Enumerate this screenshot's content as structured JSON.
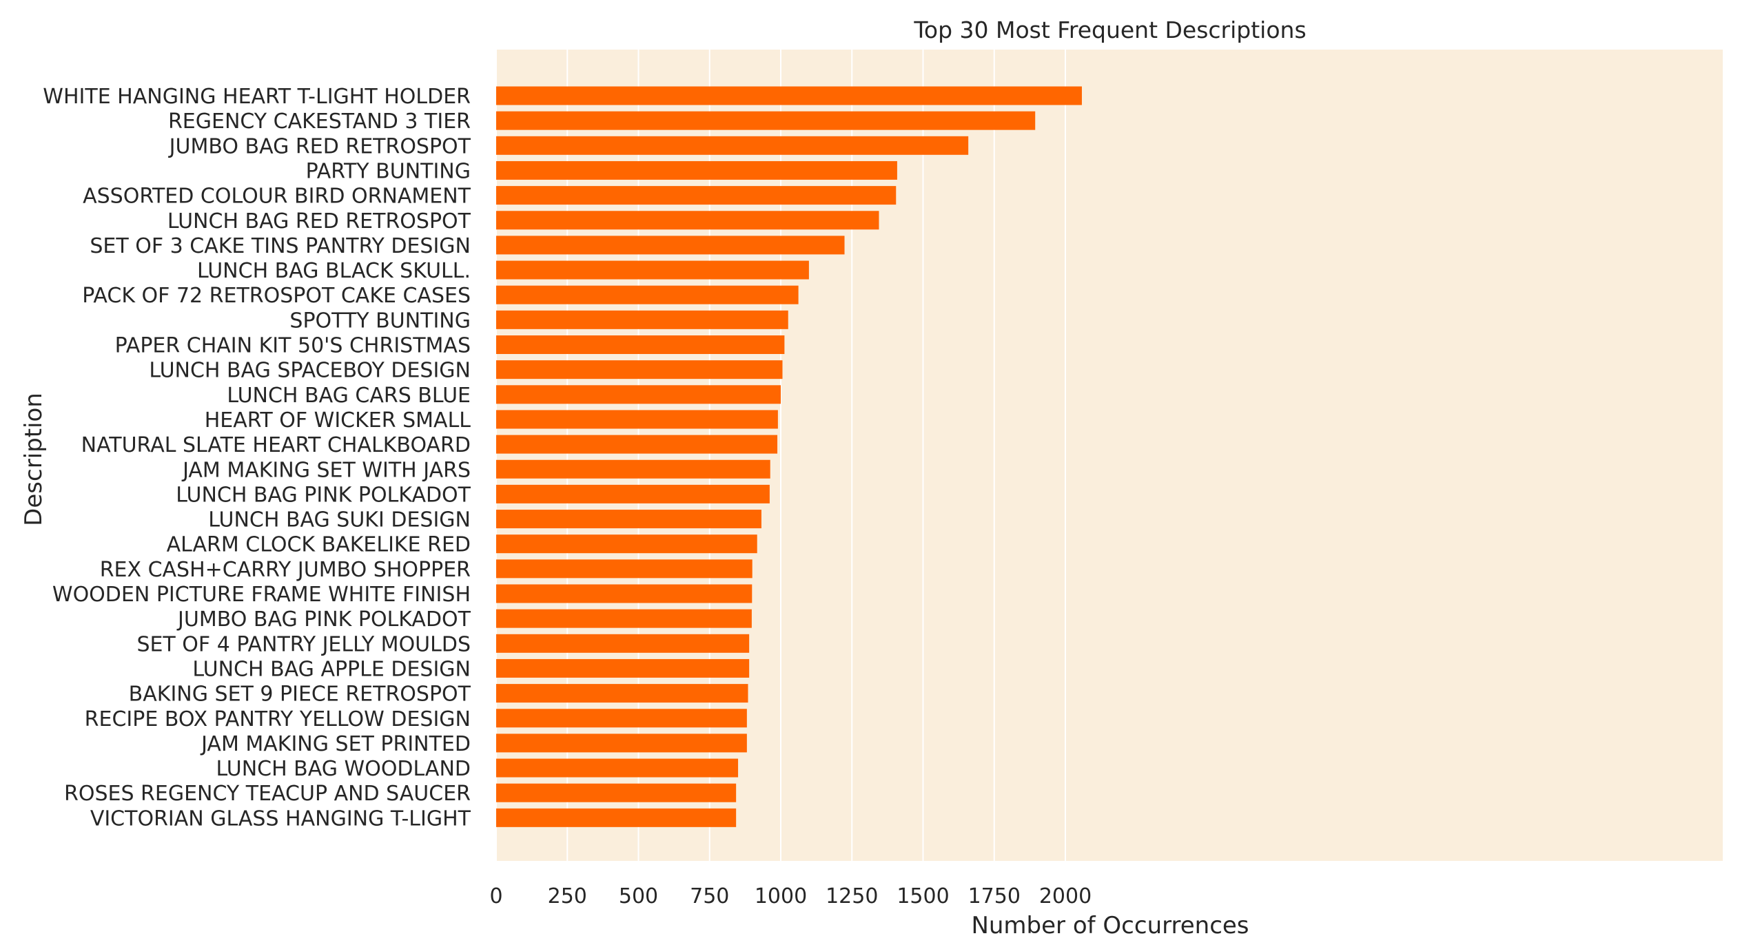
{
  "colors": {
    "bar": "#FF6600",
    "plot_background": "#FAEEDC",
    "grid": "#FFFFFF",
    "text": "#262626"
  },
  "chart_data": {
    "type": "bar",
    "orientation": "horizontal",
    "title": "Top 30 Most Frequent Descriptions",
    "xlabel": "Number of Occurrences",
    "ylabel": "Description",
    "xlim": [
      0,
      2160
    ],
    "xticks": [
      0,
      250,
      500,
      750,
      1000,
      1250,
      1500,
      1750,
      2000
    ],
    "xtick_labels": [
      "0",
      "250",
      "500",
      "750",
      "1000",
      "1250",
      "1500",
      "1750",
      "2000"
    ],
    "grid": true,
    "categories": [
      "WHITE HANGING HEART T-LIGHT HOLDER",
      "REGENCY CAKESTAND 3 TIER",
      "JUMBO BAG RED RETROSPOT",
      "PARTY BUNTING",
      "ASSORTED COLOUR BIRD ORNAMENT",
      "LUNCH BAG RED RETROSPOT",
      "SET OF 3 CAKE TINS PANTRY DESIGN ",
      "LUNCH BAG  BLACK SKULL.",
      "PACK OF 72 RETROSPOT CAKE CASES",
      "SPOTTY BUNTING",
      "PAPER CHAIN KIT 50'S CHRISTMAS ",
      "LUNCH BAG SPACEBOY DESIGN ",
      "LUNCH BAG CARS BLUE",
      "HEART OF WICKER SMALL",
      "NATURAL SLATE HEART CHALKBOARD ",
      "JAM MAKING SET WITH JARS",
      "LUNCH BAG PINK POLKADOT",
      "LUNCH BAG SUKI DESIGN ",
      "ALARM CLOCK BAKELIKE RED ",
      "REX CASH+CARRY JUMBO SHOPPER",
      "WOODEN PICTURE FRAME WHITE FINISH",
      "JUMBO BAG PINK POLKADOT",
      "SET OF 4 PANTRY JELLY MOULDS",
      "LUNCH BAG APPLE DESIGN",
      "BAKING SET 9 PIECE RETROSPOT ",
      "RECIPE BOX PANTRY YELLOW DESIGN",
      "JAM MAKING SET PRINTED",
      "LUNCH BAG WOODLAND",
      "ROSES REGENCY TEACUP AND SAUCER ",
      "VICTORIAN GLASS HANGING T-LIGHT"
    ],
    "values": [
      2058,
      1894,
      1659,
      1409,
      1405,
      1345,
      1224,
      1099,
      1062,
      1026,
      1013,
      1006,
      1000,
      990,
      988,
      963,
      961,
      932,
      917,
      900,
      899,
      898,
      889,
      889,
      885,
      881,
      881,
      850,
      843,
      843
    ]
  }
}
